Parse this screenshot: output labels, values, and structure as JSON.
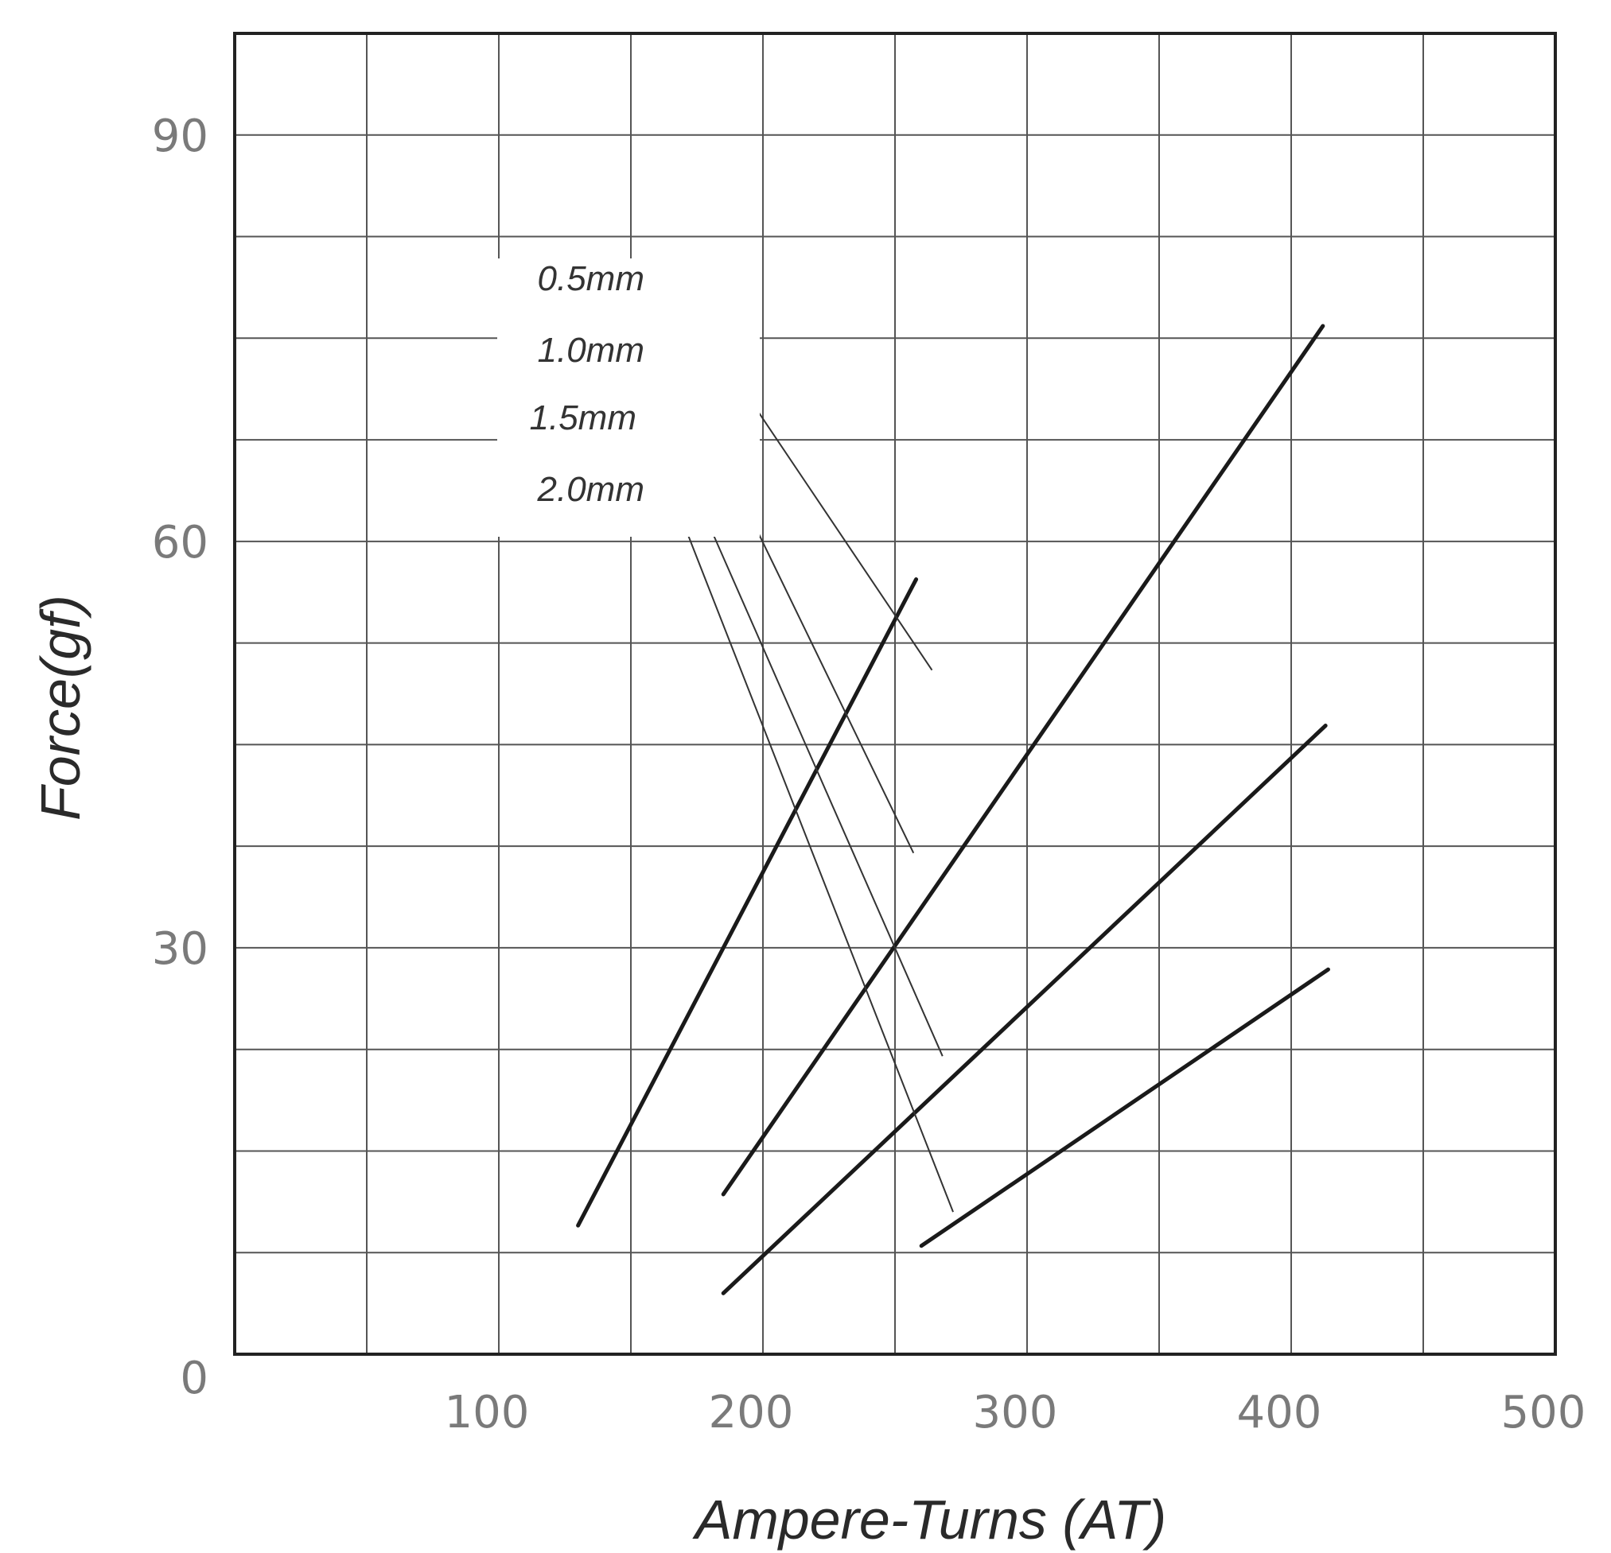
{
  "chart_data": {
    "type": "line",
    "title": "",
    "xlabel": "Ampere-Turns (AT)",
    "ylabel": "Force(gf)",
    "xlim": [
      0,
      500
    ],
    "ylim": [
      0,
      90
    ],
    "x_ticks": [
      "100",
      "200",
      "300",
      "400",
      "500"
    ],
    "y_ticks": [
      "0",
      "30",
      "60",
      "90"
    ],
    "grid": true,
    "line_color": "#1a1a1a",
    "series": [
      {
        "name": "0.5mm",
        "x": [
          130,
          258
        ],
        "y": [
          9.5,
          57.2
        ]
      },
      {
        "name": "1.0mm",
        "x": [
          185,
          412
        ],
        "y": [
          11.8,
          75.9
        ]
      },
      {
        "name": "1.5mm",
        "x": [
          185,
          413
        ],
        "y": [
          4.5,
          46.4
        ]
      },
      {
        "name": "2.0mm",
        "x": [
          260,
          414
        ],
        "y": [
          8.0,
          28.4
        ]
      }
    ]
  }
}
